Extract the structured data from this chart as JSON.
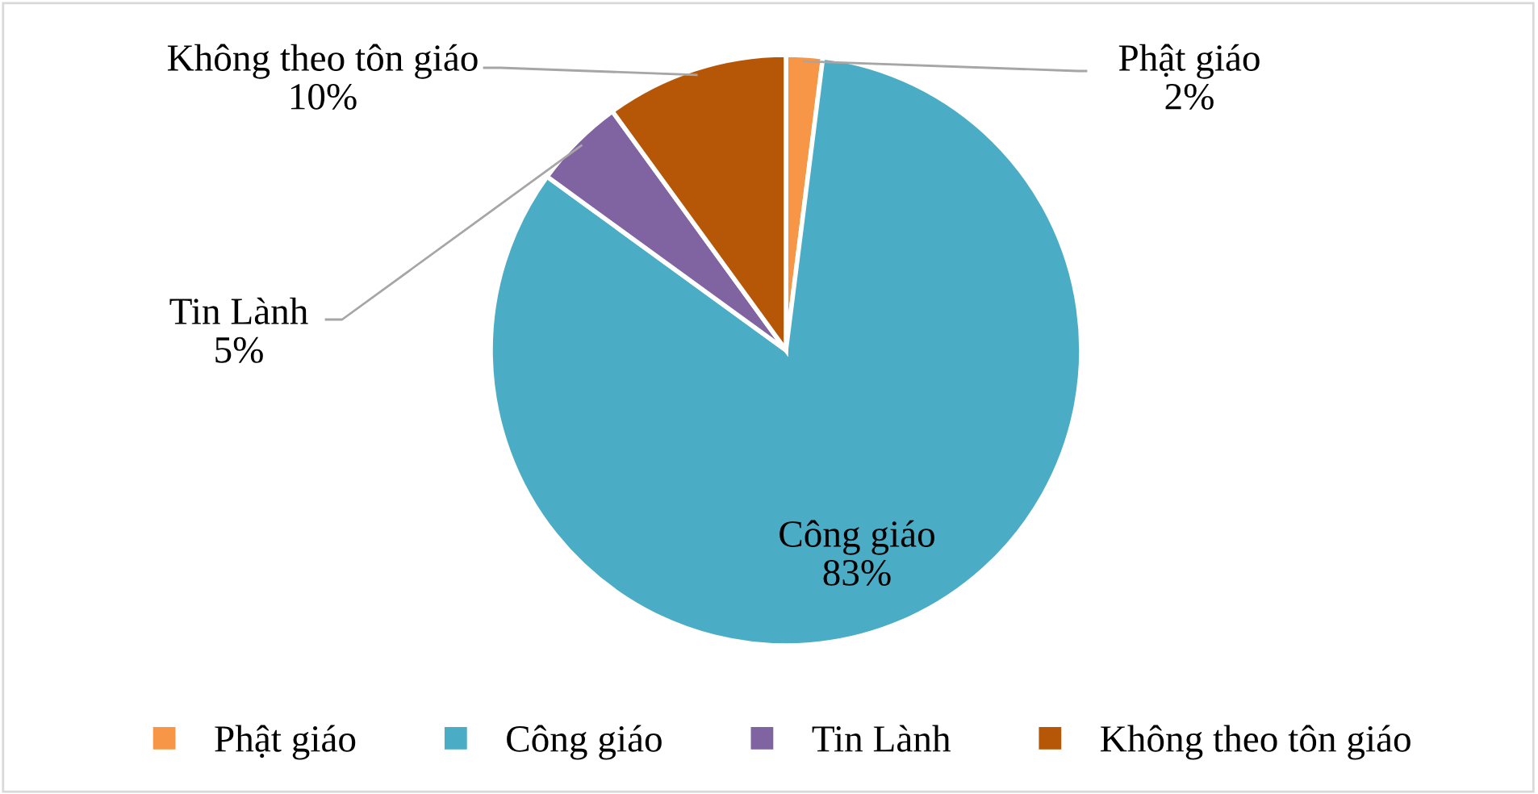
{
  "chart_data": {
    "type": "pie",
    "categories": [
      "Phật giáo",
      "Công giáo",
      "Tin Lành",
      "Không theo tôn giáo"
    ],
    "values": [
      2,
      83,
      5,
      10
    ],
    "colors": [
      "#f79646",
      "#4bacc6",
      "#8064a2",
      "#b65708"
    ],
    "value_labels": [
      "2%",
      "83%",
      "5%",
      "10%"
    ],
    "legend": "bottom"
  }
}
